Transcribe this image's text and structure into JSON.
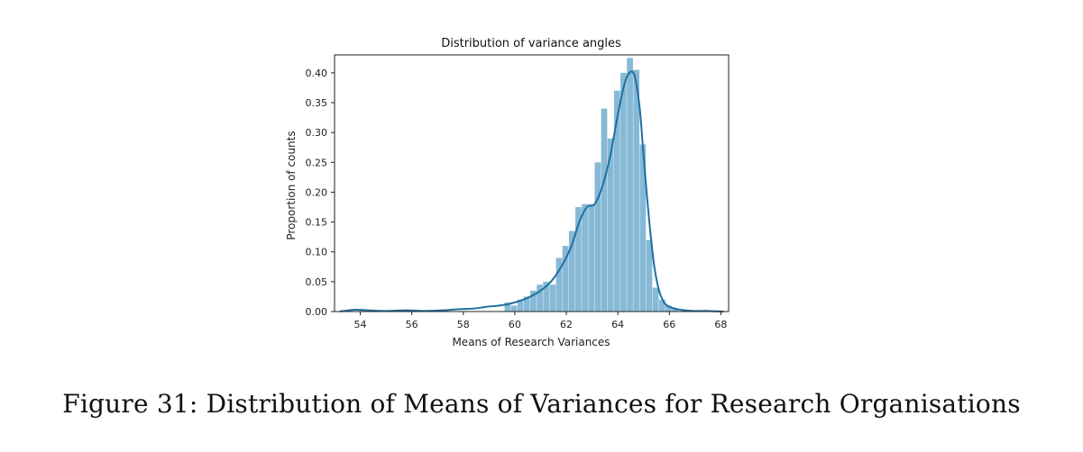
{
  "figure": {
    "caption": "Figure 31: Distribution of Means of Variances for Research Organisations"
  },
  "chart_data": {
    "type": "bar",
    "title": "Distribution of variance angles",
    "xlabel": "Means of Research Variances",
    "ylabel": "Proportion of counts",
    "xlim": [
      53.0,
      68.3
    ],
    "ylim": [
      0,
      0.43
    ],
    "xticks": [
      54,
      56,
      58,
      60,
      62,
      64,
      66,
      68
    ],
    "yticks": [
      0.0,
      0.05,
      0.1,
      0.15,
      0.2,
      0.25,
      0.3,
      0.35,
      0.4
    ],
    "ytick_labels": [
      "0.00",
      "0.05",
      "0.10",
      "0.15",
      "0.20",
      "0.25",
      "0.30",
      "0.35",
      "0.40"
    ],
    "colors": {
      "bars": "#86b9d6",
      "kde": "#1f6f9f",
      "axes": "#222222"
    },
    "histogram": {
      "bin_edges": [
        59.6,
        59.85,
        60.1,
        60.35,
        60.6,
        60.85,
        61.1,
        61.35,
        61.6,
        61.85,
        62.1,
        62.35,
        62.6,
        62.85,
        63.1,
        63.35,
        63.6,
        63.85,
        64.1,
        64.35,
        64.6,
        64.85,
        65.1,
        65.35,
        65.6,
        65.85,
        66.1,
        66.35
      ],
      "values": [
        0.015,
        0.01,
        0.02,
        0.025,
        0.035,
        0.045,
        0.05,
        0.045,
        0.09,
        0.11,
        0.135,
        0.175,
        0.18,
        0.18,
        0.25,
        0.34,
        0.29,
        0.37,
        0.4,
        0.425,
        0.405,
        0.28,
        0.12,
        0.04,
        0.02,
        0.01,
        0.005
      ]
    },
    "kde": {
      "x": [
        53.2,
        53.8,
        54.3,
        55.0,
        55.8,
        56.5,
        57.2,
        57.8,
        58.4,
        58.9,
        59.4,
        59.8,
        60.2,
        60.6,
        61.0,
        61.4,
        61.8,
        62.2,
        62.5,
        62.8,
        63.1,
        63.4,
        63.7,
        64.0,
        64.25,
        64.45,
        64.65,
        64.85,
        65.0,
        65.2,
        65.4,
        65.6,
        65.8,
        66.0,
        66.3,
        66.6,
        67.0,
        67.5,
        68.1
      ],
      "y": [
        0.0,
        0.003,
        0.002,
        0.001,
        0.002,
        0.001,
        0.002,
        0.004,
        0.005,
        0.008,
        0.01,
        0.013,
        0.018,
        0.025,
        0.035,
        0.05,
        0.075,
        0.11,
        0.15,
        0.175,
        0.18,
        0.21,
        0.26,
        0.33,
        0.38,
        0.4,
        0.395,
        0.34,
        0.26,
        0.16,
        0.08,
        0.035,
        0.015,
        0.008,
        0.004,
        0.002,
        0.001,
        0.001,
        0.0
      ]
    }
  }
}
